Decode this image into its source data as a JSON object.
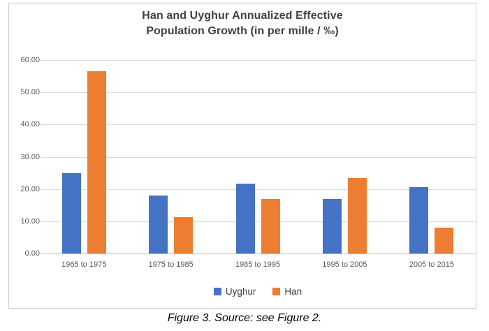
{
  "figure": {
    "caption": "Figure 3. Source: see Figure 2."
  },
  "chart_data": {
    "type": "bar",
    "title": "Han and Uyghur Annualized Effective Population Growth (in per mille / ‰)",
    "title_line1": "Han and Uyghur Annualized Effective",
    "title_line2": "Population Growth (in per mille / ‰)",
    "categories": [
      "1965 to 1975",
      "1975 to 1985",
      "1985 to 1995",
      "1995 to 2005",
      "2005 to 2015"
    ],
    "series": [
      {
        "name": "Uyghur",
        "color": "#4472C4",
        "values": [
          25.0,
          18.0,
          21.7,
          17.0,
          20.5
        ]
      },
      {
        "name": "Han",
        "color": "#ED7D31",
        "values": [
          56.5,
          11.3,
          17.0,
          23.3,
          8.0
        ]
      }
    ],
    "xlabel": "",
    "ylabel": "",
    "ylim": [
      0,
      60
    ],
    "ytick_step": 10,
    "ytick_labels": [
      "0.00",
      "10.00",
      "20.00",
      "30.00",
      "40.00",
      "50.00",
      "60.00"
    ],
    "grid": true,
    "legend_position": "bottom"
  },
  "colors": {
    "uyghur_bar": "#4472C4",
    "han_bar": "#ED7D31",
    "gridline": "#D9D9D9",
    "axis_line": "#BFBFBF",
    "tick_label": "#595959",
    "title_text": "#404040",
    "frame_border": "#C9C9C9",
    "caption_text": "#000000"
  }
}
